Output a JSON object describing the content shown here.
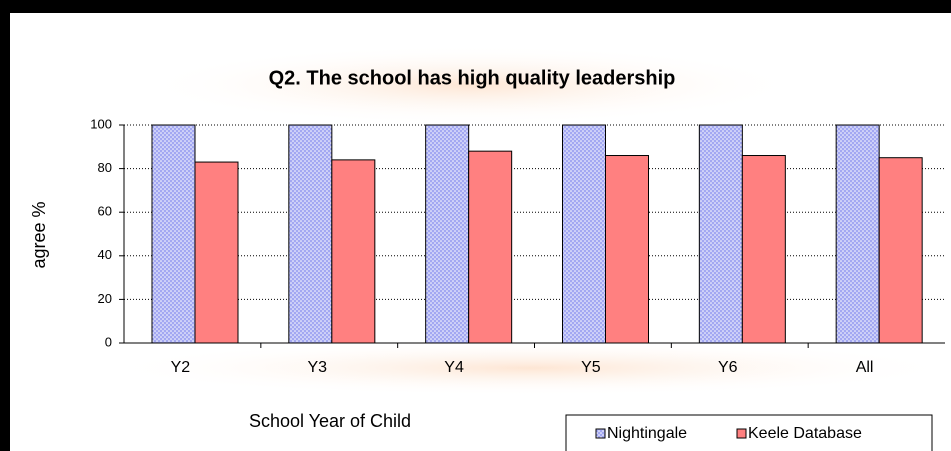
{
  "chart_data": {
    "type": "bar",
    "title": "Q2. The school has high quality leadership",
    "x_label": "School Year of Child",
    "y_label": "agree %",
    "categories": [
      "Y2",
      "Y3",
      "Y4",
      "Y5",
      "Y6",
      "All"
    ],
    "series": [
      {
        "name": "Nightingale",
        "color": "#a3a8f2",
        "values": [
          100,
          100,
          100,
          100,
          100,
          100
        ]
      },
      {
        "name": "Keele Database",
        "color": "#ff8080",
        "values": [
          83,
          84,
          88,
          86,
          86,
          85
        ]
      }
    ],
    "ylim": [
      0,
      100
    ],
    "yticks": [
      0,
      20,
      40,
      60,
      80,
      100
    ],
    "grid": true,
    "legend": "bottom-right"
  }
}
